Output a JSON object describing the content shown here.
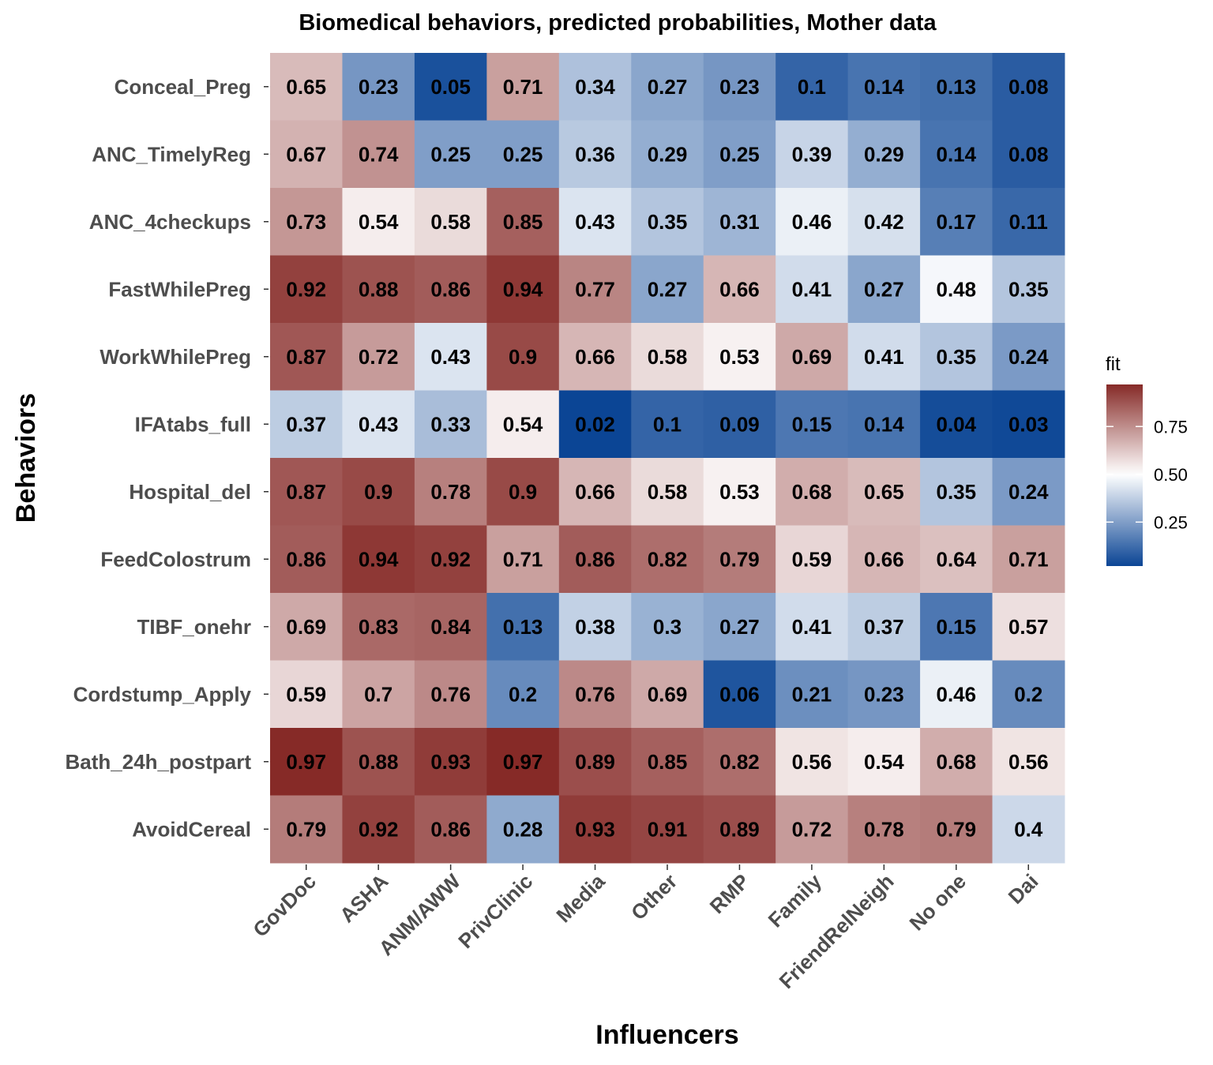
{
  "chart_data": {
    "type": "heatmap",
    "title": "Biomedical behaviors, predicted probabilities, Mother data",
    "xlabel": "Influencers",
    "ylabel": "Behaviors",
    "x": [
      "GovDoc",
      "ASHA",
      "ANM/AWW",
      "PrivClinic",
      "Media",
      "Other",
      "RMP",
      "Family",
      "FriendRelNeigh",
      "No one",
      "Dai"
    ],
    "y": [
      "Conceal_Preg",
      "ANC_TimelyReg",
      "ANC_4checkups",
      "FastWhilePreg",
      "WorkWhilePreg",
      "IFAtabs_full",
      "Hospital_del",
      "FeedColostrum",
      "TIBF_onehr",
      "Cordstump_Apply",
      "Bath_24h_postpart",
      "AvoidCereal"
    ],
    "values": [
      [
        0.65,
        0.23,
        0.05,
        0.71,
        0.34,
        0.27,
        0.23,
        0.1,
        0.14,
        0.13,
        0.08
      ],
      [
        0.67,
        0.74,
        0.25,
        0.25,
        0.36,
        0.29,
        0.25,
        0.39,
        0.29,
        0.14,
        0.08
      ],
      [
        0.73,
        0.54,
        0.58,
        0.85,
        0.43,
        0.35,
        0.31,
        0.46,
        0.42,
        0.17,
        0.11
      ],
      [
        0.92,
        0.88,
        0.86,
        0.94,
        0.77,
        0.27,
        0.66,
        0.41,
        0.27,
        0.48,
        0.35
      ],
      [
        0.87,
        0.72,
        0.43,
        0.9,
        0.66,
        0.58,
        0.53,
        0.69,
        0.41,
        0.35,
        0.24
      ],
      [
        0.37,
        0.43,
        0.33,
        0.54,
        0.02,
        0.1,
        0.09,
        0.15,
        0.14,
        0.04,
        0.03
      ],
      [
        0.87,
        0.9,
        0.78,
        0.9,
        0.66,
        0.58,
        0.53,
        0.68,
        0.65,
        0.35,
        0.24
      ],
      [
        0.86,
        0.94,
        0.92,
        0.71,
        0.86,
        0.82,
        0.79,
        0.59,
        0.66,
        0.64,
        0.71
      ],
      [
        0.69,
        0.83,
        0.84,
        0.13,
        0.38,
        0.3,
        0.27,
        0.41,
        0.37,
        0.15,
        0.57
      ],
      [
        0.59,
        0.7,
        0.76,
        0.2,
        0.76,
        0.69,
        0.06,
        0.21,
        0.23,
        0.46,
        0.2
      ],
      [
        0.97,
        0.88,
        0.93,
        0.97,
        0.89,
        0.85,
        0.82,
        0.56,
        0.54,
        0.68,
        0.56
      ],
      [
        0.79,
        0.92,
        0.86,
        0.28,
        0.93,
        0.91,
        0.89,
        0.72,
        0.78,
        0.79,
        0.4
      ]
    ],
    "legend": {
      "title": "fit",
      "ticks": [
        0.25,
        0.5,
        0.75
      ],
      "tick_labels": [
        "0.25",
        "0.50",
        "0.75"
      ],
      "range": [
        0.02,
        0.97
      ],
      "placement": "right"
    },
    "colors": {
      "low": "#0B4595",
      "mid": "#FFFFFF",
      "high": "#862A27",
      "midpoint": 0.5
    }
  }
}
